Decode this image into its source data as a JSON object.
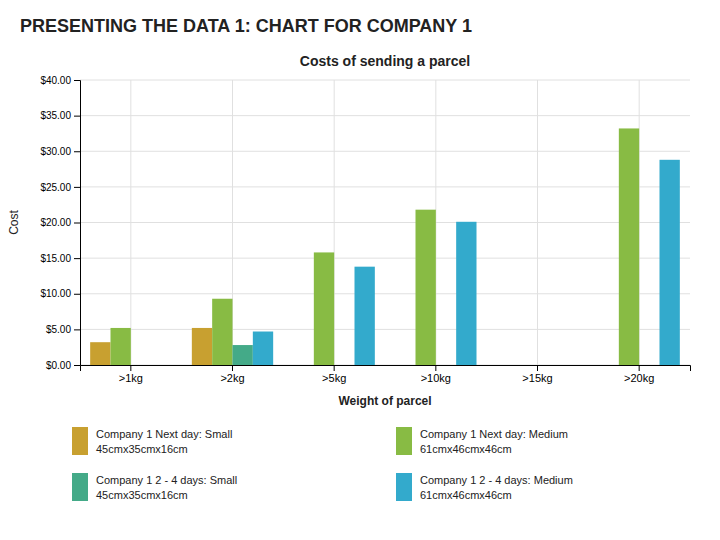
{
  "chart_data": {
    "type": "bar",
    "title": "PRESENTING THE DATA 1: CHART FOR COMPANY 1",
    "subtitle": "Costs of sending a parcel",
    "xlabel": "Weight of parcel",
    "ylabel": "Cost",
    "categories": [
      ">1kg",
      ">2kg",
      ">5kg",
      ">10kg",
      ">15kg",
      ">20kg"
    ],
    "series": [
      {
        "name": "Company 1 Next day: Small\n45cmx35cmx16cm",
        "color": "#c8a030",
        "values": [
          3.2,
          5.2,
          0,
          0,
          0,
          0
        ]
      },
      {
        "name": "Company 1 Next day: Medium\n61cmx46cmx46cm",
        "color": "#88bb44",
        "values": [
          5.2,
          9.3,
          15.8,
          21.8,
          0,
          33.2
        ]
      },
      {
        "name": "Company 1 2 - 4 days: Small\n45cmx35cmx16cm",
        "color": "#44aa88",
        "values": [
          0,
          2.8,
          0,
          0,
          0,
          0
        ]
      },
      {
        "name": "Company 1 2 - 4 days: Medium\n61cmx46cmx46cm",
        "color": "#33aacc",
        "values": [
          0,
          4.7,
          13.8,
          20.1,
          0,
          28.8
        ]
      }
    ],
    "ylim": [
      0,
      40
    ],
    "yticks": [
      {
        "value": 0,
        "label": "$0.00"
      },
      {
        "value": 5,
        "label": "$5.00"
      },
      {
        "value": 10,
        "label": "$10.00"
      },
      {
        "value": 15,
        "label": "$15.00"
      },
      {
        "value": 20,
        "label": "$20.00"
      },
      {
        "value": 25,
        "label": "$25.00"
      },
      {
        "value": 30,
        "label": "$30.00"
      },
      {
        "value": 35,
        "label": "$35.00"
      },
      {
        "value": 40,
        "label": "$40.00"
      }
    ],
    "grid": true,
    "legend": "bottom"
  }
}
